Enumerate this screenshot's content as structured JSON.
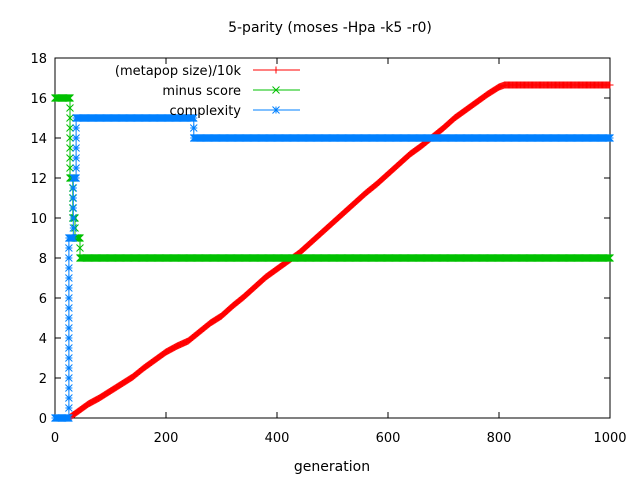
{
  "chart_data": {
    "type": "line",
    "title": "5-parity (moses -Hpa -k5 -r0)",
    "xlabel": "generation",
    "ylabel": "",
    "xlim": [
      0,
      1000
    ],
    "ylim": [
      0,
      18
    ],
    "xticks": [
      "0",
      "200",
      "400",
      "600",
      "800",
      "1000"
    ],
    "yticks": [
      "0",
      "2",
      "4",
      "6",
      "8",
      "10",
      "12",
      "14",
      "16",
      "18"
    ],
    "grid": false,
    "legend": "top-left",
    "series": [
      {
        "name": "(metapop size)/10k",
        "color": "#ff0000",
        "marker": "plus",
        "x": [
          0,
          25,
          30,
          40,
          60,
          80,
          100,
          120,
          140,
          160,
          180,
          200,
          220,
          240,
          260,
          280,
          300,
          320,
          340,
          360,
          380,
          400,
          420,
          440,
          460,
          480,
          500,
          520,
          540,
          560,
          580,
          600,
          620,
          640,
          660,
          680,
          700,
          720,
          740,
          760,
          780,
          800,
          810,
          1000
        ],
        "y": [
          0,
          0,
          0.1,
          0.3,
          0.7,
          1.0,
          1.35,
          1.7,
          2.05,
          2.5,
          2.9,
          3.3,
          3.6,
          3.85,
          4.3,
          4.75,
          5.1,
          5.6,
          6.05,
          6.55,
          7.05,
          7.45,
          7.85,
          8.25,
          8.75,
          9.25,
          9.75,
          10.25,
          10.75,
          11.25,
          11.7,
          12.2,
          12.7,
          13.2,
          13.6,
          14.05,
          14.5,
          15.0,
          15.4,
          15.8,
          16.2,
          16.55,
          16.65,
          16.65
        ]
      },
      {
        "name": "minus score",
        "color": "#00c000",
        "marker": "cross",
        "x": [
          0,
          27,
          27,
          32,
          32,
          36,
          36,
          40,
          40,
          45,
          45,
          1000
        ],
        "y": [
          16,
          16,
          12,
          12,
          10,
          10,
          9,
          9,
          9,
          9,
          8,
          8
        ]
      },
      {
        "name": "complexity",
        "color": "#0080ff",
        "marker": "star",
        "x": [
          0,
          25,
          25,
          33,
          33,
          38,
          38,
          250,
          250,
          1000
        ],
        "y": [
          0,
          0,
          9,
          9,
          12,
          12,
          15,
          15,
          14,
          14
        ]
      }
    ]
  }
}
